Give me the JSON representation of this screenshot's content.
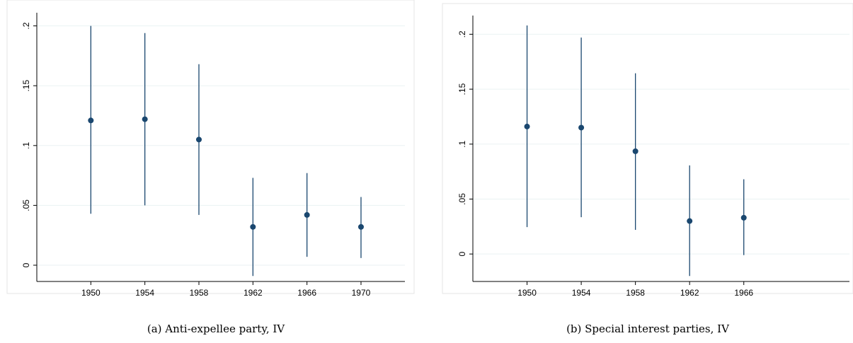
{
  "chart_data": [
    {
      "type": "errorbar",
      "caption": "(a) Anti-expellee party, IV",
      "color": "#1a476f",
      "x": [
        1950,
        1954,
        1958,
        1962,
        1966,
        1970
      ],
      "values": [
        0.121,
        0.122,
        0.105,
        0.032,
        0.042,
        0.032
      ],
      "lower": [
        0.043,
        0.05,
        0.042,
        -0.009,
        0.007,
        0.006
      ],
      "upper": [
        0.2,
        0.194,
        0.168,
        0.073,
        0.077,
        0.057
      ],
      "xlim": [
        1946,
        1973.25
      ],
      "ylim": [
        -0.0136,
        0.211
      ],
      "xticks": [
        1950,
        1954,
        1958,
        1962,
        1966,
        1970
      ],
      "yticks": [
        0,
        {
          "value": 0.05,
          "label": ".05"
        },
        {
          "value": 0.1,
          "label": ".1"
        },
        {
          "value": 0.15,
          "label": ".15"
        },
        {
          "value": 0.2,
          "label": ".2"
        }
      ],
      "grid": true
    },
    {
      "type": "errorbar",
      "caption": "(b) Special interest parties, IV",
      "color": "#1a476f",
      "x": [
        1950,
        1954,
        1958,
        1962,
        1966
      ],
      "values": [
        0.116,
        0.115,
        0.0935,
        0.03,
        0.033
      ],
      "lower": [
        0.0245,
        0.0335,
        0.022,
        -0.02,
        -0.001
      ],
      "upper": [
        0.208,
        0.197,
        0.1645,
        0.0806,
        0.068
      ],
      "xlim": [
        1946,
        1973.8
      ],
      "ylim": [
        -0.025,
        0.217
      ],
      "xticks": [
        1950,
        1954,
        1958,
        1962,
        1966
      ],
      "yticks": [
        0,
        {
          "value": 0.05,
          "label": ".05"
        },
        {
          "value": 0.1,
          "label": ".1"
        },
        {
          "value": 0.15,
          "label": ".15"
        },
        {
          "value": 0.2,
          "label": ".2"
        }
      ],
      "grid": true
    }
  ]
}
